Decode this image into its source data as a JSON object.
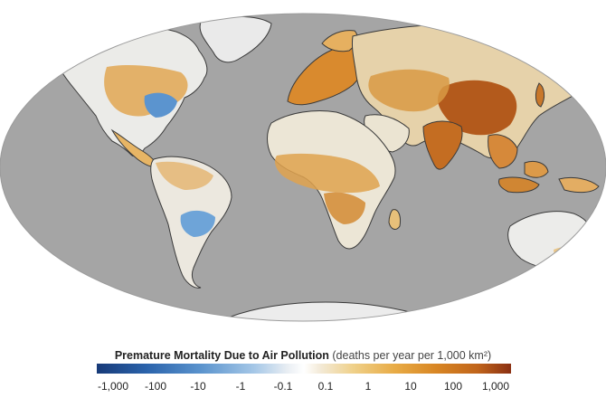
{
  "legend": {
    "title": "Premature Mortality Due to Air Pollution",
    "units": "(deaths per year per 1,000 km²)",
    "ticks": [
      "-1,000",
      "-100",
      "-10",
      "-1",
      "-0.1",
      "0.1",
      "1",
      "10",
      "100",
      "1,000"
    ]
  },
  "colors": {
    "ocean": "#a5a5a5",
    "land_neutral": "#e9e9e9",
    "outline": "#3a3a3a",
    "high_positive": "#8a3012",
    "mid_positive": "#d88624",
    "low_positive": "#efd089",
    "negative": "#5a93cd",
    "strong_negative": "#173a78"
  }
}
